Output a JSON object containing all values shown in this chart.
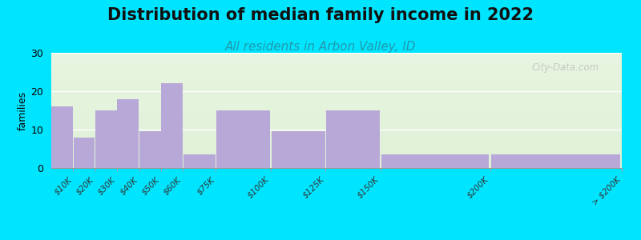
{
  "title": "Distribution of median family income in 2022",
  "subtitle": "All residents in Arbon Valley, ID",
  "ylabel": "families",
  "bar_color": "#b8a8d8",
  "background_outer": "#00e5ff",
  "background_top_color": "#e8f5e0",
  "background_bottom_color": "#f5fff5",
  "ylim": [
    0,
    30
  ],
  "yticks": [
    0,
    10,
    20,
    30
  ],
  "title_fontsize": 15,
  "subtitle_fontsize": 11,
  "subtitle_color": "#2299aa",
  "watermark": "City-Data.com",
  "edges": [
    0,
    10,
    20,
    30,
    40,
    50,
    60,
    75,
    100,
    125,
    150,
    200,
    260
  ],
  "heights": [
    16,
    8,
    15,
    18,
    9.5,
    22,
    3.5,
    15,
    9.5,
    15,
    3.5,
    3.5
  ],
  "tick_labels": [
    "$10K",
    "$20K",
    "$30K",
    "$40K",
    "$50K",
    "$60K",
    "$75K",
    "$100K",
    "$125K",
    "$150K",
    "$200K",
    "> $200K"
  ],
  "tick_positions": [
    10,
    20,
    30,
    40,
    50,
    60,
    75,
    100,
    125,
    150,
    200,
    260
  ]
}
